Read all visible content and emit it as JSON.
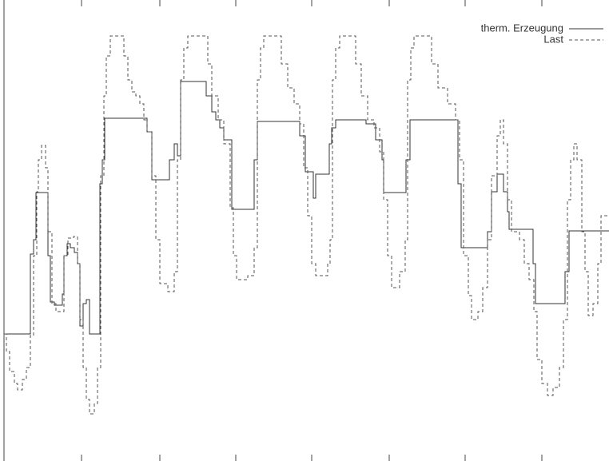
{
  "chart_data": {
    "type": "line",
    "step": "post",
    "legend": "upper right",
    "xlim": [
      0,
      757
    ],
    "ylim": [
      0,
      577
    ],
    "xticks": [
      97,
      195,
      290,
      385,
      482,
      577,
      673
    ],
    "series": [
      {
        "name": "therm. Erzeugung",
        "color": "#333333",
        "dash": "solid",
        "x": [
          0,
          33,
          37,
          40,
          55,
          58,
          63,
          73,
          75,
          79,
          83,
          88,
          92,
          95,
          99,
          103,
          107,
          120,
          123,
          126,
          179,
          185,
          207,
          213,
          217,
          221,
          253,
          260,
          265,
          270,
          275,
          285,
          313,
          317,
          370,
          377,
          387,
          390,
          407,
          410,
          415,
          453,
          465,
          473,
          475,
          503,
          508,
          568,
          572,
          605,
          610,
          617,
          625,
          630,
          632,
          662,
          665,
          702,
          707,
          757
        ],
        "values": [
          159,
          259,
          277,
          336,
          257,
          199,
          195,
          209,
          257,
          272,
          267,
          261,
          247,
          169,
          197,
          202,
          159,
          347,
          377,
          429,
          412,
          352,
          377,
          397,
          382,
          475,
          457,
          437,
          427,
          417,
          402,
          315,
          377,
          425,
          407,
          362,
          329,
          359,
          397,
          417,
          427,
          422,
          402,
          377,
          336,
          377,
          427,
          347,
          267,
          287,
          337,
          359,
          337,
          312,
          290,
          247,
          197,
          237,
          288,
          288
        ]
      },
      {
        "name": "Last",
        "color": "#555555",
        "dash": "dashed",
        "x": [
          0,
          3,
          7,
          13,
          17,
          23,
          28,
          33,
          37,
          41,
          43,
          47,
          52,
          55,
          60,
          65,
          75,
          80,
          87,
          92,
          95,
          99,
          103,
          107,
          113,
          117,
          121,
          125,
          128,
          133,
          145,
          150,
          155,
          160,
          165,
          170,
          175,
          179,
          185,
          190,
          195,
          205,
          213,
          217,
          221,
          225,
          230,
          250,
          255,
          260,
          268,
          275,
          283,
          287,
          291,
          305,
          313,
          317,
          321,
          325,
          342,
          347,
          355,
          363,
          370,
          375,
          380,
          385,
          390,
          405,
          408,
          411,
          415,
          420,
          435,
          440,
          447,
          455,
          463,
          470,
          475,
          480,
          485,
          495,
          502,
          505,
          509,
          513,
          530,
          535,
          543,
          555,
          565,
          570,
          575,
          581,
          585,
          593,
          599,
          605,
          610,
          617,
          621,
          625,
          630,
          635,
          645,
          651,
          657,
          663,
          667,
          673,
          680,
          687,
          695,
          700,
          705,
          709,
          713,
          717,
          723,
          727,
          731,
          737,
          743,
          747,
          757
        ],
        "values": [
          159,
          137,
          112,
          97,
          89,
          102,
          117,
          157,
          257,
          337,
          377,
          395,
          367,
          287,
          197,
          187,
          257,
          279,
          281,
          247,
          177,
          117,
          77,
          59,
          72,
          117,
          357,
          457,
          507,
          532,
          532,
          507,
          477,
          462,
          457,
          447,
          427,
          412,
          357,
          277,
          222,
          212,
          237,
          377,
          477,
          517,
          532,
          532,
          497,
          457,
          427,
          397,
          317,
          257,
          227,
          232,
          267,
          477,
          517,
          532,
          532,
          497,
          467,
          447,
          422,
          367,
          307,
          247,
          232,
          247,
          277,
          477,
          517,
          532,
          532,
          497,
          457,
          427,
          417,
          387,
          327,
          257,
          217,
          237,
          277,
          477,
          517,
          532,
          532,
          497,
          467,
          447,
          427,
          377,
          257,
          207,
          177,
          187,
          217,
          277,
          357,
          407,
          427,
          397,
          327,
          287,
          277,
          247,
          227,
          187,
          127,
          97,
          82,
          92,
          117,
          177,
          327,
          377,
          397,
          377,
          287,
          237,
          182,
          197,
          247,
          307,
          307
        ]
      }
    ]
  }
}
